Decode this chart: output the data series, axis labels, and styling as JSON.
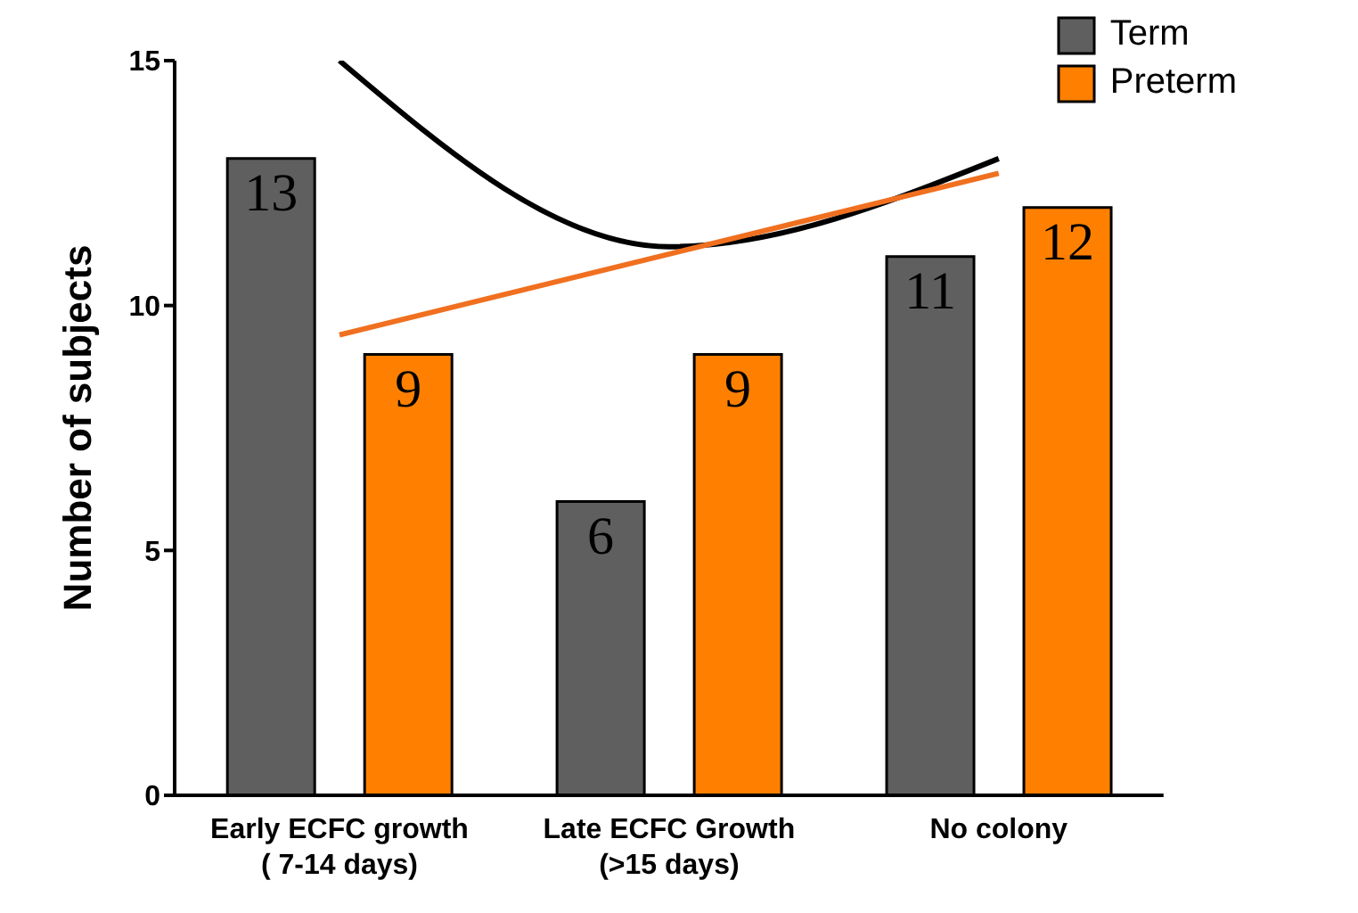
{
  "chart_data": {
    "type": "bar",
    "ylabel": "Number of subjects",
    "categories": [
      "Early ECFC growth\n( 7-14 days)",
      "Late ECFC Growth\n(>15 days)",
      "No colony"
    ],
    "series": [
      {
        "name": "Term",
        "color": "#5f5f5f",
        "values": [
          13,
          6,
          11
        ],
        "value_labels": [
          "13",
          "6",
          "11"
        ]
      },
      {
        "name": "Preterm",
        "color": "#ff8000",
        "values": [
          9,
          9,
          12
        ],
        "value_labels": [
          "9",
          "9",
          "12"
        ]
      },
      {
        "type": "line",
        "color": "#000000",
        "values": [
          15,
          11.2,
          13
        ]
      },
      {
        "type": "line",
        "color": "#f07020",
        "values": [
          9.4,
          null,
          12.7
        ]
      }
    ],
    "ylim": [
      0,
      15
    ],
    "yticks": [
      0,
      5,
      10,
      15
    ],
    "grid": false,
    "legend": "top right",
    "marker": "none"
  }
}
